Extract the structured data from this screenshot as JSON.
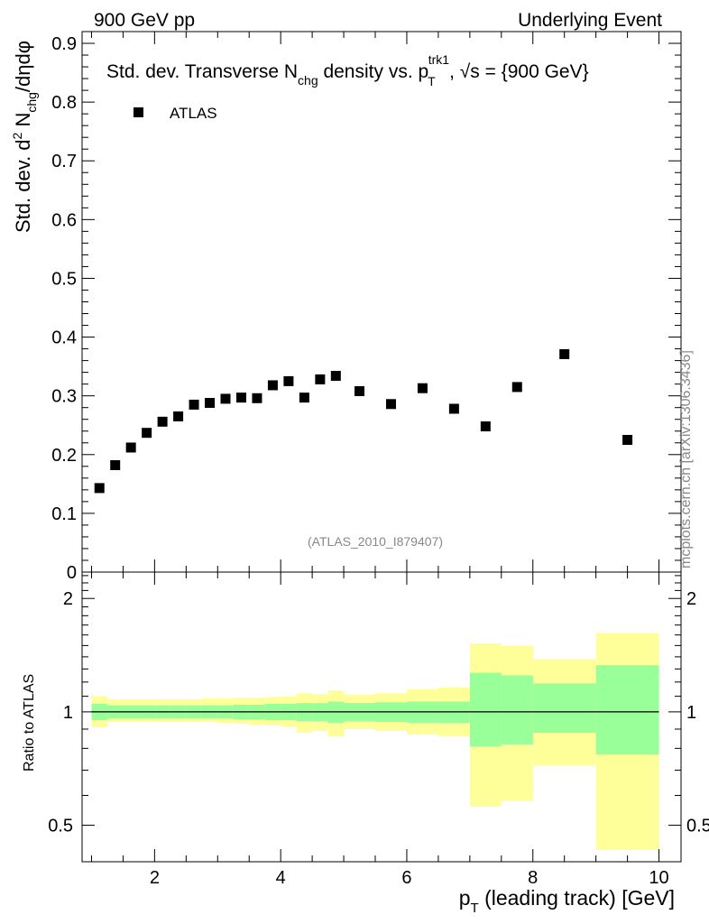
{
  "header": {
    "left": "900 GeV pp",
    "right": "Underlying Event"
  },
  "main": {
    "title_parts": {
      "a": "Std. dev. Transverse N",
      "b": "chg",
      "c": " density vs. p",
      "d": "T",
      "e": "trk1",
      "f": ", ",
      "g": "√",
      "h": "s = {900 GeV}"
    },
    "ylabel_parts": {
      "a": "Std. dev. d",
      "b": "2",
      "c": " N",
      "d": "chg",
      "e": "/dηdφ"
    },
    "legend_label": "ATLAS",
    "analysis_id": "(ATLAS_2010_I879407)",
    "watermark": "mcplots.cern.ch [arXiv:1306.3436]"
  },
  "ratio": {
    "ylabel": "Ratio to ATLAS"
  },
  "xlabel_parts": {
    "a": "p",
    "b": "T",
    "c": " (leading track) [GeV]"
  },
  "chart_data": [
    {
      "type": "scatter",
      "title": "Std. dev. Transverse Nchg density vs. pT trk1, √s = {900 GeV}",
      "xlabel": "pT (leading track) [GeV]",
      "ylabel": "Std. dev. d2 Nchg/dηdφ",
      "xlim": [
        0.85,
        10.35
      ],
      "ylim": [
        0,
        0.92
      ],
      "yticks": [
        0,
        0.1,
        0.2,
        0.3,
        0.4,
        0.5,
        0.6,
        0.7,
        0.8,
        0.9
      ],
      "ytick_labels": [
        "0",
        "0.1",
        "0.2",
        "0.3",
        "0.4",
        "0.5",
        "0.6",
        "0.7",
        "0.8",
        "0.9"
      ],
      "series": [
        {
          "name": "ATLAS",
          "color": "#000000",
          "marker": "square",
          "x": [
            1.125,
            1.375,
            1.625,
            1.875,
            2.125,
            2.375,
            2.625,
            2.875,
            3.125,
            3.375,
            3.625,
            3.875,
            4.125,
            4.375,
            4.625,
            4.875,
            5.25,
            5.75,
            6.25,
            6.75,
            7.25,
            7.75,
            8.5,
            9.5
          ],
          "y": [
            0.143,
            0.182,
            0.212,
            0.237,
            0.256,
            0.265,
            0.285,
            0.288,
            0.295,
            0.297,
            0.296,
            0.318,
            0.325,
            0.297,
            0.328,
            0.334,
            0.308,
            0.286,
            0.313,
            0.278,
            0.248,
            0.315,
            0.371,
            0.225
          ]
        }
      ]
    },
    {
      "type": "area",
      "title": "Ratio to ATLAS",
      "ylabel": "Ratio to ATLAS",
      "xlabel": "pT (leading track) [GeV]",
      "xlim": [
        0.85,
        10.35
      ],
      "ylim": [
        0.4,
        2.35
      ],
      "yscale": "log",
      "yticks": [
        0.5,
        1,
        2
      ],
      "ytick_labels": [
        "0.5",
        "1",
        "2"
      ],
      "xticks": [
        2,
        4,
        6,
        8,
        10
      ],
      "xtick_labels": [
        "2",
        "4",
        "6",
        "8",
        "10"
      ],
      "reference_line": 1,
      "colors": {
        "inner": "#99ff99",
        "outer": "#ffff99",
        "line": "#000000"
      },
      "bins": [
        {
          "lo": 1.0,
          "hi": 1.25,
          "inner": [
            0.95,
            1.05
          ],
          "outer": [
            0.91,
            1.1
          ]
        },
        {
          "lo": 1.25,
          "hi": 1.5,
          "inner": [
            0.96,
            1.04
          ],
          "outer": [
            0.94,
            1.08
          ]
        },
        {
          "lo": 1.5,
          "hi": 1.75,
          "inner": [
            0.96,
            1.04
          ],
          "outer": [
            0.94,
            1.08
          ]
        },
        {
          "lo": 1.75,
          "hi": 2.0,
          "inner": [
            0.96,
            1.04
          ],
          "outer": [
            0.94,
            1.08
          ]
        },
        {
          "lo": 2.0,
          "hi": 2.25,
          "inner": [
            0.96,
            1.04
          ],
          "outer": [
            0.94,
            1.08
          ]
        },
        {
          "lo": 2.25,
          "hi": 2.5,
          "inner": [
            0.96,
            1.04
          ],
          "outer": [
            0.94,
            1.08
          ]
        },
        {
          "lo": 2.5,
          "hi": 2.75,
          "inner": [
            0.96,
            1.04
          ],
          "outer": [
            0.94,
            1.08
          ]
        },
        {
          "lo": 2.75,
          "hi": 3.0,
          "inner": [
            0.96,
            1.04
          ],
          "outer": [
            0.94,
            1.085
          ]
        },
        {
          "lo": 3.0,
          "hi": 3.25,
          "inner": [
            0.96,
            1.04
          ],
          "outer": [
            0.935,
            1.085
          ]
        },
        {
          "lo": 3.25,
          "hi": 3.5,
          "inner": [
            0.955,
            1.045
          ],
          "outer": [
            0.93,
            1.09
          ]
        },
        {
          "lo": 3.5,
          "hi": 3.75,
          "inner": [
            0.955,
            1.045
          ],
          "outer": [
            0.925,
            1.09
          ]
        },
        {
          "lo": 3.75,
          "hi": 4.0,
          "inner": [
            0.95,
            1.05
          ],
          "outer": [
            0.92,
            1.095
          ]
        },
        {
          "lo": 4.0,
          "hi": 4.25,
          "inner": [
            0.95,
            1.05
          ],
          "outer": [
            0.915,
            1.1
          ]
        },
        {
          "lo": 4.25,
          "hi": 4.5,
          "inner": [
            0.945,
            1.055
          ],
          "outer": [
            0.88,
            1.12
          ]
        },
        {
          "lo": 4.5,
          "hi": 4.75,
          "inner": [
            0.945,
            1.055
          ],
          "outer": [
            0.89,
            1.115
          ]
        },
        {
          "lo": 4.75,
          "hi": 5.0,
          "inner": [
            0.935,
            1.065
          ],
          "outer": [
            0.86,
            1.14
          ]
        },
        {
          "lo": 5.0,
          "hi": 5.5,
          "inner": [
            0.945,
            1.055
          ],
          "outer": [
            0.9,
            1.11
          ]
        },
        {
          "lo": 5.5,
          "hi": 6.0,
          "inner": [
            0.94,
            1.06
          ],
          "outer": [
            0.89,
            1.12
          ]
        },
        {
          "lo": 6.0,
          "hi": 6.5,
          "inner": [
            0.935,
            1.065
          ],
          "outer": [
            0.87,
            1.15
          ]
        },
        {
          "lo": 6.5,
          "hi": 7.0,
          "inner": [
            0.935,
            1.065
          ],
          "outer": [
            0.86,
            1.16
          ]
        },
        {
          "lo": 7.0,
          "hi": 7.5,
          "inner": [
            0.81,
            1.27
          ],
          "outer": [
            0.56,
            1.52
          ]
        },
        {
          "lo": 7.5,
          "hi": 8.0,
          "inner": [
            0.82,
            1.25
          ],
          "outer": [
            0.58,
            1.5
          ]
        },
        {
          "lo": 8.0,
          "hi": 9.0,
          "inner": [
            0.88,
            1.19
          ],
          "outer": [
            0.72,
            1.38
          ]
        },
        {
          "lo": 9.0,
          "hi": 10.0,
          "inner": [
            0.77,
            1.33
          ],
          "outer": [
            0.43,
            1.62
          ]
        }
      ]
    }
  ]
}
